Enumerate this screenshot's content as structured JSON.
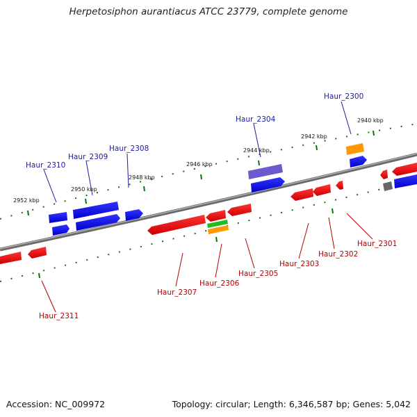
{
  "title": "Herpetosiphon aurantiacus ATCC 23779, complete genome",
  "footer": {
    "accession": "Accession: NC_009972",
    "summary": "Topology: circular; Length: 6,346,587 bp; Genes: 5,042"
  },
  "colors": {
    "plus_strand_gene": "#0000ee",
    "minus_strand_gene": "#ee0000",
    "backbone": "#888888",
    "tick": "#007700",
    "label_top": "#1a1aa0",
    "label_bottom": "#b00000"
  },
  "kbp_labels": [
    "2952 kbp",
    "2950 kbp",
    "2948 kbp",
    "2946 kbp",
    "2944 kbp",
    "2942 kbp",
    "2940 kbp"
  ],
  "top_genes": [
    "Haur_2310",
    "Haur_2309",
    "Haur_2308",
    "Haur_2304",
    "Haur_2300"
  ],
  "bottom_genes": [
    "Haur_2311",
    "Haur_2307",
    "Haur_2306",
    "Haur_2305",
    "Haur_2303",
    "Haur_2302",
    "Haur_2301"
  ]
}
